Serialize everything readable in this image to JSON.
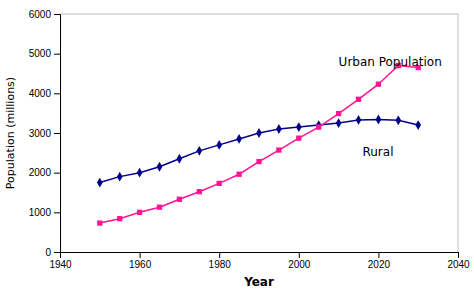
{
  "chart_data": {
    "type": "line",
    "x": [
      1950,
      1955,
      1960,
      1965,
      1970,
      1975,
      1980,
      1985,
      1990,
      1995,
      2000,
      2005,
      2010,
      2015,
      2020,
      2025,
      2030
    ],
    "series": [
      {
        "color": "#00008B",
        "marker": "diamond",
        "values": [
          1750,
          1900,
          2000,
          2150,
          2350,
          2550,
          2700,
          2850,
          3000,
          3100,
          3150,
          3200,
          3250,
          3330,
          3340,
          3320,
          3200
        ]
      },
      {
        "color": "#FF1493",
        "marker": "square",
        "values": [
          730,
          840,
          1000,
          1130,
          1330,
          1520,
          1730,
          1960,
          2280,
          2570,
          2870,
          3150,
          3490,
          3850,
          4230,
          4700,
          4650
        ]
      }
    ],
    "xlabel": "Year",
    "ylabel": "Population (millions)",
    "xlim": [
      1940,
      2040
    ],
    "ylim": [
      0,
      6000
    ],
    "xticks": [
      1940,
      1960,
      1980,
      2000,
      2020,
      2040
    ],
    "yticks": [
      0,
      1000,
      2000,
      3000,
      4000,
      5000,
      6000
    ],
    "grid": false,
    "annotations": [
      {
        "text": "Urban Population",
        "x": 2010,
        "y": 4950
      },
      {
        "text": "Rural",
        "x": 2016,
        "y": 2680
      }
    ]
  }
}
